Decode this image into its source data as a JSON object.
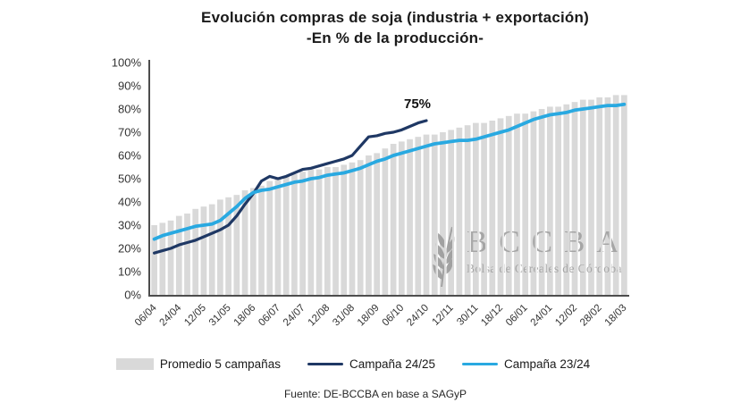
{
  "title": {
    "line1": "Evolución compras de soja (industria + exportación)",
    "line2": "-En % de la producción-"
  },
  "colors": {
    "bars": "#d9d9d9",
    "line_24_25": "#1f3864",
    "line_23_24": "#29a9e1",
    "axis": "#4d4d4d",
    "watermark": "#a0a0a0"
  },
  "watermark": {
    "letters": "BCCBA",
    "subtitle": "Bolsa de Cereales de Córdoba",
    "icon": "wheat-spike-icon"
  },
  "legend": [
    {
      "label": "Promedio 5 campañas",
      "type": "bar",
      "color": "#d9d9d9"
    },
    {
      "label": "Campaña 24/25",
      "type": "line",
      "color": "#1f3864"
    },
    {
      "label": "Campaña 23/24",
      "type": "line",
      "color": "#29a9e1"
    }
  ],
  "footer": {
    "source": "Fuente: DE-BCCBA en base a SAGyP"
  },
  "chart_data": {
    "type": "bar+line combo",
    "title": "Evolución compras de soja (industria + exportación) -En % de la producción-",
    "ylabel": "% de la producción",
    "ylim": [
      0,
      100
    ],
    "y_tick_step": 10,
    "y_tick_suffix": "%",
    "grid": false,
    "legend_position": "bottom",
    "n_points": 58,
    "x_ticks_every_n_points": 3,
    "x_tick_labels": [
      "06/04",
      "24/04",
      "12/05",
      "31/05",
      "18/06",
      "06/07",
      "24/07",
      "12/08",
      "31/08",
      "18/09",
      "06/10",
      "24/10",
      "12/11",
      "30/11",
      "18/12",
      "06/01",
      "24/01",
      "12/02",
      "28/02",
      "18/03"
    ],
    "series": [
      {
        "name": "Promedio 5 campañas",
        "type": "bar",
        "color": "#d9d9d9",
        "values": [
          30,
          31,
          32,
          34,
          35,
          37,
          38,
          39,
          41,
          42,
          43,
          45,
          46,
          47,
          49,
          50,
          51,
          52,
          53,
          54,
          54,
          55,
          55,
          56,
          57,
          58,
          60,
          61,
          63,
          65,
          66,
          67,
          68,
          69,
          69,
          70,
          71,
          72,
          73,
          74,
          74,
          75,
          76,
          77,
          78,
          78,
          79,
          80,
          81,
          81,
          82,
          83,
          84,
          84,
          85,
          85,
          86,
          86
        ]
      },
      {
        "name": "Campaña 24/25",
        "type": "line",
        "color": "#1f3864",
        "values": [
          18,
          19,
          20,
          21.5,
          22.5,
          23.5,
          25,
          26.5,
          28,
          30,
          34,
          39,
          43.5,
          49,
          51,
          50,
          51,
          52.5,
          54,
          54.5,
          55.5,
          56.5,
          57.5,
          58.5,
          60,
          64,
          68,
          68.5,
          69.5,
          70,
          71,
          72.5,
          74,
          75
        ]
      },
      {
        "name": "Campaña 23/24",
        "type": "line",
        "color": "#29a9e1",
        "values": [
          24,
          25.5,
          26.5,
          27.5,
          28.5,
          29.5,
          30,
          30.5,
          32,
          35,
          38,
          41.5,
          44,
          45,
          45.5,
          46.5,
          47.5,
          48.5,
          49,
          50,
          50.5,
          51.5,
          52,
          52.5,
          53.5,
          54.5,
          56,
          57.5,
          58.5,
          60,
          61,
          62,
          63,
          64,
          65,
          65.5,
          66,
          66.5,
          66.5,
          67,
          68,
          69,
          70,
          71,
          72.5,
          74,
          75.5,
          76.5,
          77.5,
          78,
          78.5,
          79.5,
          80,
          80.5,
          81,
          81.5,
          81.5,
          82
        ]
      }
    ],
    "annotations": [
      {
        "text": "75%",
        "series": "Campaña 24/25",
        "at_point": 33,
        "value": 75
      }
    ]
  }
}
